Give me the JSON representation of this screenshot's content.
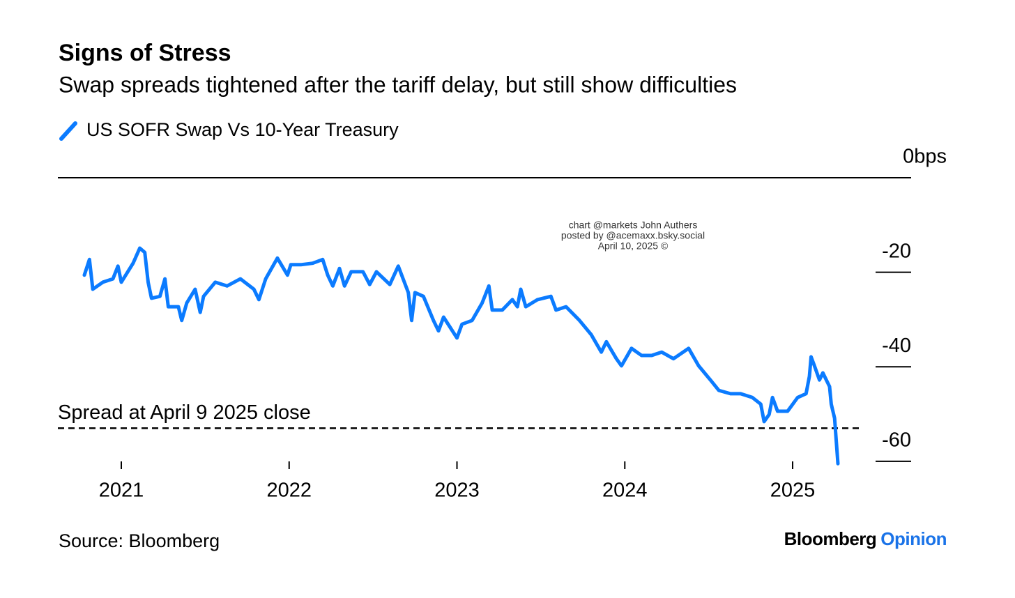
{
  "chart_data": {
    "type": "line",
    "title": "Signs of Stress",
    "subtitle": "Swap spreads tightened after the tariff delay, but still show difficulties",
    "annotations": [
      "chart @markets John Authers",
      "posted by @acemaxx.bsky.social",
      "April 10, 2025 ©"
    ],
    "source": "Source: Bloomberg",
    "brand": [
      "Bloomberg",
      "Opinion"
    ],
    "xlim": [
      2020.622,
      2025.706
    ],
    "xticks": [
      2021,
      2022,
      2023,
      2024,
      2025
    ],
    "ylim": [
      -62,
      0
    ],
    "yticks": [
      {
        "value": 0,
        "label": "0bps"
      },
      -20,
      -40,
      -60
    ],
    "reference_line": {
      "value": -53,
      "label": "Spread at April 9 2025 close"
    },
    "series": [
      {
        "name": "US SOFR Swap Vs 10-Year Treasury",
        "color": "#0b7bff",
        "x": [
          2020.78,
          2020.81,
          2020.83,
          2020.89,
          2020.95,
          2020.98,
          2021.0,
          2021.07,
          2021.11,
          2021.14,
          2021.16,
          2021.18,
          2021.23,
          2021.26,
          2021.28,
          2021.34,
          2021.36,
          2021.39,
          2021.44,
          2021.47,
          2021.49,
          2021.56,
          2021.63,
          2021.71,
          2021.79,
          2021.82,
          2021.86,
          2021.93,
          2021.99,
          2022.01,
          2022.07,
          2022.14,
          2022.2,
          2022.23,
          2022.26,
          2022.3,
          2022.33,
          2022.37,
          2022.44,
          2022.48,
          2022.52,
          2022.6,
          2022.65,
          2022.71,
          2022.73,
          2022.75,
          2022.8,
          2022.86,
          2022.89,
          2022.92,
          2023.0,
          2023.03,
          2023.09,
          2023.15,
          2023.19,
          2023.21,
          2023.27,
          2023.33,
          2023.36,
          2023.38,
          2023.41,
          2023.48,
          2023.56,
          2023.59,
          2023.65,
          2023.73,
          2023.8,
          2023.86,
          2023.89,
          2023.95,
          2023.98,
          2024.04,
          2024.1,
          2024.16,
          2024.22,
          2024.29,
          2024.38,
          2024.44,
          2024.51,
          2024.56,
          2024.63,
          2024.69,
          2024.76,
          2024.81,
          2024.83,
          2024.86,
          2024.88,
          2024.91,
          2024.97,
          2025.03,
          2025.08,
          2025.1,
          2025.11,
          2025.13,
          2025.16,
          2025.18,
          2025.22,
          2025.23,
          2025.25,
          2025.27
        ],
        "values": [
          -20.6,
          -17.3,
          -23.6,
          -22.1,
          -21.4,
          -18.7,
          -22.1,
          -18.1,
          -14.9,
          -15.8,
          -22.1,
          -25.5,
          -25.1,
          -21.4,
          -27.3,
          -27.3,
          -30.2,
          -26.5,
          -23.6,
          -28.5,
          -25.1,
          -22.1,
          -22.9,
          -21.4,
          -23.6,
          -25.8,
          -21.4,
          -17.0,
          -20.6,
          -18.4,
          -18.4,
          -18.1,
          -17.3,
          -20.6,
          -22.9,
          -19.2,
          -22.9,
          -19.9,
          -19.9,
          -22.6,
          -19.9,
          -22.6,
          -18.7,
          -24.3,
          -30.2,
          -24.3,
          -25.1,
          -30.2,
          -32.4,
          -29.5,
          -33.9,
          -31.0,
          -30.2,
          -26.5,
          -22.9,
          -28.0,
          -28.0,
          -25.8,
          -27.3,
          -23.6,
          -27.3,
          -25.8,
          -25.1,
          -28.0,
          -27.3,
          -30.2,
          -33.2,
          -36.9,
          -34.7,
          -38.3,
          -39.8,
          -36.1,
          -37.6,
          -37.6,
          -36.9,
          -38.3,
          -36.1,
          -39.8,
          -42.8,
          -45.0,
          -45.7,
          -45.7,
          -46.5,
          -47.9,
          -51.6,
          -50.1,
          -46.5,
          -49.4,
          -49.4,
          -46.5,
          -45.7,
          -42.0,
          -37.9,
          -39.8,
          -42.8,
          -41.3,
          -44.2,
          -47.9,
          -50.9,
          -60.5
        ]
      }
    ]
  }
}
